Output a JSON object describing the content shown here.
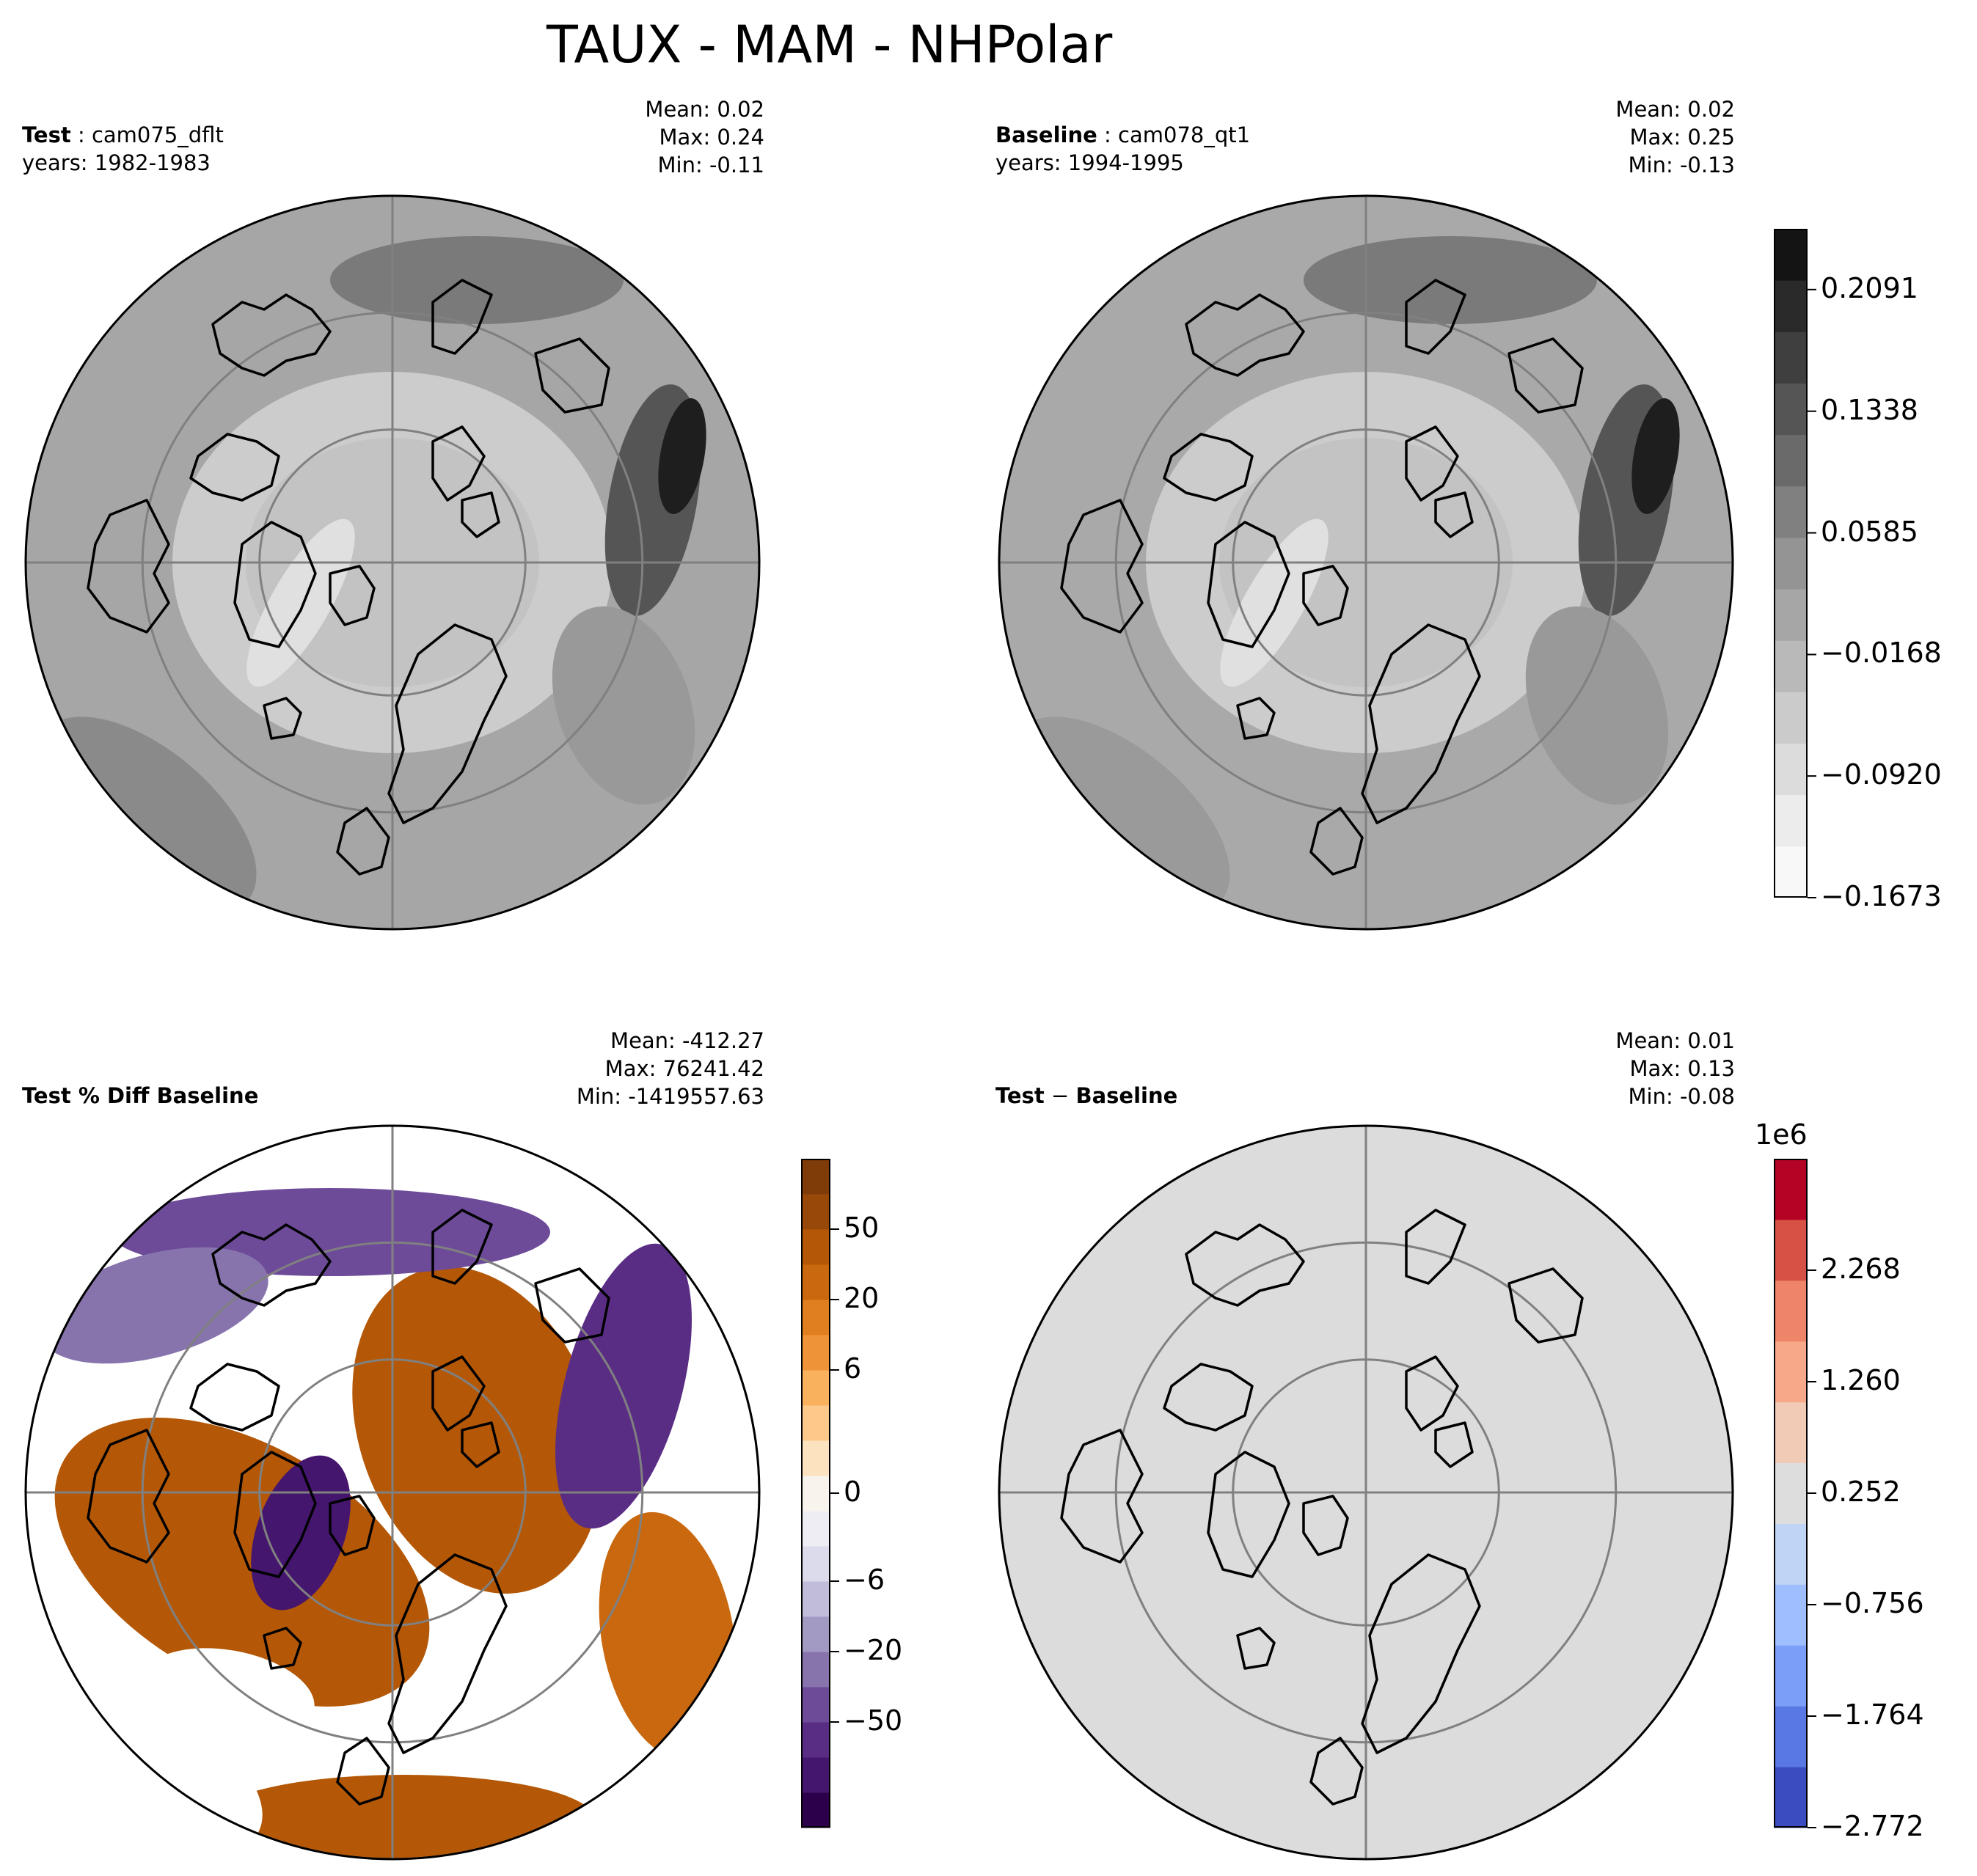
{
  "figure_title": "TAUX - MAM - NHPolar",
  "panels": {
    "test": {
      "label_bold": "Test",
      "label_rest": "cam075_dflt",
      "years": "years: 1982-1983",
      "mean": "Mean:  0.02",
      "max": "Max:  0.24",
      "min": "Min: -0.11"
    },
    "baseline": {
      "label_bold": "Baseline",
      "label_rest": "cam078_qt1",
      "years": "years: 1994-1995",
      "mean": "Mean:  0.02",
      "max": "Max:  0.25",
      "min": "Min: -0.13"
    },
    "pctdiff": {
      "label_bold": "Test % Diff Baseline",
      "mean": "Mean: -412.27",
      "max": "Max: 76241.42",
      "min": "Min: -1419557.63"
    },
    "diff": {
      "label_bold": "Test",
      "label_op": " − ",
      "label_bold2": "Baseline",
      "mean": "Mean:  0.01",
      "max": "Max:  0.13",
      "min": "Min: -0.08"
    }
  },
  "chart_data": [
    {
      "type": "heatmap",
      "title": "Test: cam075_dflt (years: 1982-1983)",
      "projection": "north-polar-stereographic",
      "colormap": "greys",
      "stats": {
        "mean": 0.02,
        "max": 0.24,
        "min": -0.11
      }
    },
    {
      "type": "heatmap",
      "title": "Baseline: cam078_qt1 (years: 1994-1995)",
      "projection": "north-polar-stereographic",
      "colormap": "greys",
      "stats": {
        "mean": 0.02,
        "max": 0.25,
        "min": -0.13
      }
    },
    {
      "type": "heatmap",
      "title": "Test % Diff Baseline",
      "projection": "north-polar-stereographic",
      "colormap": "purple-orange diverging",
      "stats": {
        "mean": -412.27,
        "max": 76241.42,
        "min": -1419557.63
      }
    },
    {
      "type": "heatmap",
      "title": "Test − Baseline",
      "projection": "north-polar-stereographic",
      "colormap": "blue-red diverging",
      "stats": {
        "mean": 0.01,
        "max": 0.13,
        "min": -0.08
      }
    }
  ],
  "colorbars": {
    "shared": {
      "ticks": [
        "0.2091",
        "0.1338",
        "0.0585",
        "−0.0168",
        "−0.0920",
        "−0.1673"
      ],
      "tick_values": [
        0.2091,
        0.1338,
        0.0585,
        -0.0168,
        -0.092,
        -0.1673
      ],
      "range": [
        -0.1673,
        0.2467
      ],
      "levels": [
        "#f8f8f8",
        "#ececec",
        "#dcdcdc",
        "#cbcbcb",
        "#b9b9b9",
        "#a6a6a6",
        "#949494",
        "#808080",
        "#6a6a6a",
        "#555555",
        "#3f3f3f",
        "#2a2a2a",
        "#141414"
      ]
    },
    "pctdiff": {
      "ticks": [
        "50",
        "20",
        "6",
        "0",
        "−6",
        "−20",
        "−50"
      ],
      "tick_values": [
        50,
        20,
        6,
        0,
        -6,
        -20,
        -50
      ],
      "levels": [
        "#2d004b",
        "#45166e",
        "#5a2d85",
        "#6e4b99",
        "#8774ad",
        "#a29ac2",
        "#c0bcd9",
        "#dcdbeb",
        "#eeedf3",
        "#f8f3ec",
        "#fde2c0",
        "#fdc98a",
        "#f9b15e",
        "#ef9338",
        "#e07f1f",
        "#c9680e",
        "#b45807",
        "#98490a",
        "#7f3b08"
      ]
    },
    "diff": {
      "multiplier": "1e6",
      "ticks": [
        "2.268",
        "1.260",
        "0.252",
        "−0.756",
        "−1.764",
        "−2.772"
      ],
      "tick_values": [
        2.268,
        1.26,
        0.252,
        -0.756,
        -1.764,
        -2.772
      ],
      "levels": [
        "#3b4cc0",
        "#5a78e4",
        "#7b9ff9",
        "#9ebeff",
        "#c0d4f5",
        "#dddddd",
        "#f2cbb7",
        "#f7a889",
        "#ee8468",
        "#d65244",
        "#b40426"
      ]
    }
  },
  "map_colors": {
    "test_background": "#a6a6a6",
    "baseline_background": "#a9a9a9",
    "pctdiff_background": "#ffffff",
    "diff_background": "#dcdcdc",
    "gridline": "#808080",
    "coastline": "#000000"
  }
}
